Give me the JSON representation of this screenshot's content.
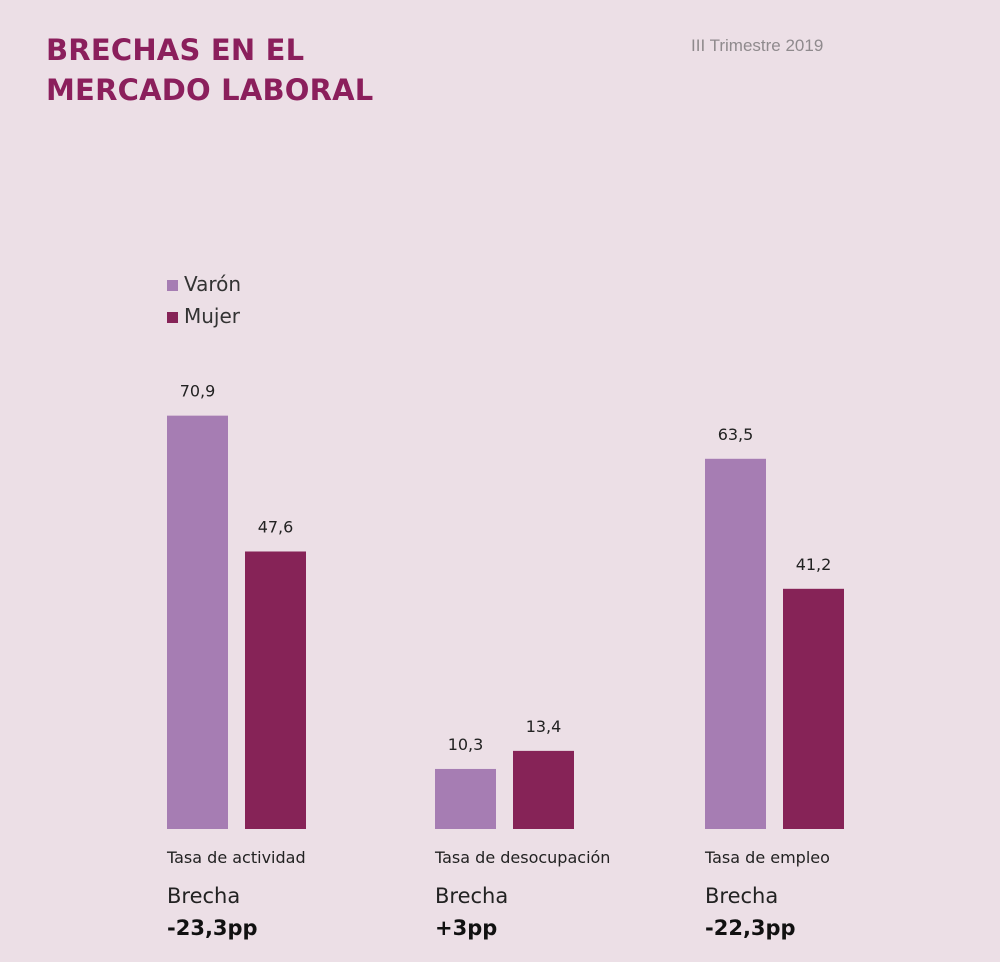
{
  "header": {
    "title_line1": "BRECHAS EN EL",
    "title_line2": "MERCADO LABORAL",
    "subtitle": "III Trimestre 2019"
  },
  "colors": {
    "varon": "#a67db3",
    "mujer": "#862357",
    "title": "#8b1f5c"
  },
  "chart_data": {
    "type": "bar",
    "categories": [
      "Tasa de actividad",
      "Tasa de desocupación",
      "Tasa de empleo"
    ],
    "series": [
      {
        "name": "Varón",
        "values": [
          70.9,
          10.3,
          63.5
        ],
        "labels": [
          "70,9",
          "10,3",
          "63,5"
        ]
      },
      {
        "name": "Mujer",
        "values": [
          47.6,
          13.4,
          41.2
        ],
        "labels": [
          "47,6",
          "13,4",
          "41,2"
        ]
      }
    ],
    "legend": "top-left",
    "grid": false
  },
  "gaps": [
    {
      "title": "Brecha",
      "value": "-23,3pp"
    },
    {
      "title": "Brecha",
      "value": "+3pp"
    },
    {
      "title": "Brecha",
      "value": "-22,3pp"
    }
  ]
}
